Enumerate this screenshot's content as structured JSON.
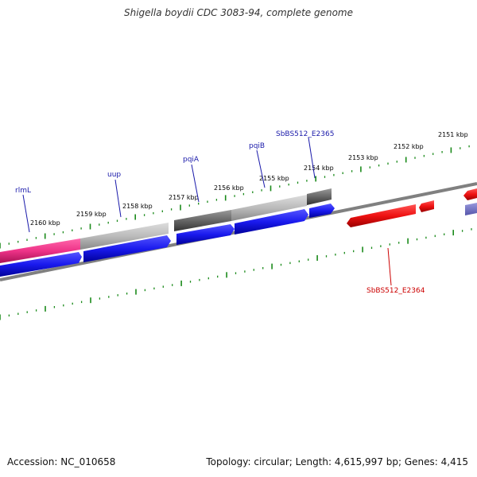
{
  "title": "Shigella boydii CDC 3083-94, complete genome",
  "footer": {
    "accession": "Accession: NC_010658",
    "topology": "Topology: circular; Length: 4,615,997 bp; Genes: 4,415"
  },
  "colors": {
    "cds_forward": "#1a1aee",
    "cds_reverse": "#ee1111",
    "gene_pink": "#ee3388",
    "gene_gray_light": "#bbbbbb",
    "gene_gray_dark": "#666666",
    "ticks": "#1a8a1a",
    "backbone": "#808080",
    "label_forward": "#1a1aaa",
    "label_reverse": "#cc0000"
  },
  "kbp_labels": [
    "2160 kbp",
    "2159 kbp",
    "2158 kbp",
    "2157 kbp",
    "2156 kbp",
    "2155 kbp",
    "2154 kbp",
    "2153 kbp",
    "2152 kbp",
    "2151 kbp"
  ],
  "genes_forward": [
    "rlmL",
    "uup",
    "pqiA",
    "pqiB",
    "SbBS512_E2365"
  ],
  "genes_reverse": [
    "SbBS512_E2364"
  ]
}
